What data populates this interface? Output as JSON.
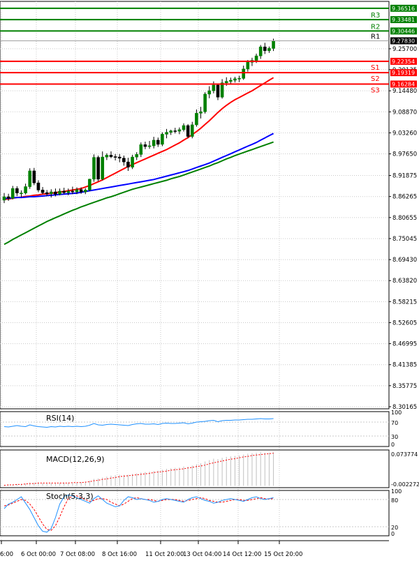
{
  "chart_data": {
    "type": "candlestick",
    "main": {
      "price_ticks": [
        "9.25700",
        "9.20135",
        "9.14480",
        "9.08870",
        "9.03260",
        "8.97650",
        "8.91875",
        "8.86265",
        "8.80655",
        "8.75045",
        "8.69430",
        "8.63820",
        "8.58215",
        "8.52605",
        "8.46995",
        "8.41385",
        "8.35775",
        "8.30165"
      ],
      "levels": [
        {
          "label": "",
          "value": 9.36516,
          "tag": "9.36516",
          "color": "#008000"
        },
        {
          "label": "R3",
          "value": 9.33481,
          "tag": "9.33481",
          "color": "#008000"
        },
        {
          "label": "R2",
          "value": 9.30446,
          "tag": "9.30446",
          "color": "#008000"
        },
        {
          "label": "R1",
          "value": 9.2783,
          "tag": "9.27830",
          "color": "#000000",
          "current": true
        },
        {
          "label": "S1",
          "value": 9.22354,
          "tag": "9.22354",
          "color": "#ff0000"
        },
        {
          "label": "S2",
          "value": 9.19319,
          "tag": "9.19319",
          "color": "#ff0000"
        },
        {
          "label": "S3",
          "value": 9.16284,
          "tag": "9.16284",
          "color": "#ff0000"
        }
      ],
      "time_labels": [
        "6:00",
        "6 Oct 00:00",
        "7 Oct 08:00",
        "8 Oct 16:00",
        "11 Oct 20:00",
        "13 Oct 04:00",
        "14 Oct 12:00",
        "15 Oct 20:00"
      ],
      "candles": [
        [
          8.853,
          8.872,
          8.845,
          8.862
        ],
        [
          8.862,
          8.87,
          8.851,
          8.858
        ],
        [
          8.858,
          8.891,
          8.855,
          8.884
        ],
        [
          8.884,
          8.89,
          8.864,
          8.872
        ],
        [
          8.872,
          8.879,
          8.861,
          8.872
        ],
        [
          8.872,
          8.897,
          8.868,
          8.889
        ],
        [
          8.889,
          8.938,
          8.883,
          8.931
        ],
        [
          8.931,
          8.939,
          8.893,
          8.899
        ],
        [
          8.899,
          8.906,
          8.874,
          8.88
        ],
        [
          8.88,
          8.888,
          8.868,
          8.873
        ],
        [
          8.873,
          8.88,
          8.864,
          8.87
        ],
        [
          8.87,
          8.882,
          8.86,
          8.875
        ],
        [
          8.875,
          8.884,
          8.863,
          8.869
        ],
        [
          8.869,
          8.884,
          8.866,
          8.877
        ],
        [
          8.877,
          8.886,
          8.869,
          8.873
        ],
        [
          8.873,
          8.884,
          8.866,
          8.877
        ],
        [
          8.877,
          8.889,
          8.869,
          8.875
        ],
        [
          8.875,
          8.887,
          8.869,
          8.881
        ],
        [
          8.881,
          8.887,
          8.87,
          8.875
        ],
        [
          8.875,
          8.885,
          8.869,
          8.88
        ],
        [
          8.88,
          8.91,
          8.877,
          8.909
        ],
        [
          8.909,
          8.975,
          8.902,
          8.967
        ],
        [
          8.967,
          8.972,
          8.903,
          8.909
        ],
        [
          8.909,
          8.983,
          8.906,
          8.968
        ],
        [
          8.968,
          8.978,
          8.96,
          8.973
        ],
        [
          8.973,
          8.983,
          8.965,
          8.969
        ],
        [
          8.969,
          8.976,
          8.959,
          8.968
        ],
        [
          8.968,
          8.976,
          8.954,
          8.965
        ],
        [
          8.965,
          8.972,
          8.945,
          8.955
        ],
        [
          8.955,
          8.966,
          8.931,
          8.941
        ],
        [
          8.941,
          8.974,
          8.936,
          8.968
        ],
        [
          8.968,
          8.981,
          8.96,
          8.975
        ],
        [
          8.975,
          9.007,
          8.968,
          9.001
        ],
        [
          9.001,
          9.009,
          8.989,
          8.996
        ],
        [
          8.996,
          9.011,
          8.99,
          8.998
        ],
        [
          8.998,
          9.022,
          8.991,
          9.013
        ],
        [
          9.013,
          9.02,
          8.995,
          9.002
        ],
        [
          9.002,
          9.034,
          8.997,
          9.029
        ],
        [
          9.029,
          9.043,
          9.018,
          9.034
        ],
        [
          9.034,
          9.041,
          9.027,
          9.038
        ],
        [
          9.038,
          9.046,
          9.031,
          9.037
        ],
        [
          9.037,
          9.047,
          9.029,
          9.041
        ],
        [
          9.041,
          9.058,
          9.036,
          9.052
        ],
        [
          9.052,
          9.056,
          9.018,
          9.023
        ],
        [
          9.023,
          9.062,
          9.018,
          9.054
        ],
        [
          9.054,
          9.095,
          9.049,
          9.085
        ],
        [
          9.085,
          9.102,
          9.071,
          9.089
        ],
        [
          9.089,
          9.141,
          9.084,
          9.136
        ],
        [
          9.136,
          9.157,
          9.125,
          9.145
        ],
        [
          9.145,
          9.17,
          9.138,
          9.16
        ],
        [
          9.16,
          9.164,
          9.12,
          9.128
        ],
        [
          9.128,
          9.176,
          9.124,
          9.166
        ],
        [
          9.166,
          9.181,
          9.158,
          9.17
        ],
        [
          9.17,
          9.18,
          9.162,
          9.173
        ],
        [
          9.173,
          9.182,
          9.167,
          9.177
        ],
        [
          9.177,
          9.185,
          9.168,
          9.178
        ],
        [
          9.178,
          9.212,
          9.174,
          9.203
        ],
        [
          9.203,
          9.227,
          9.196,
          9.221
        ],
        [
          9.221,
          9.233,
          9.211,
          9.226
        ],
        [
          9.226,
          9.244,
          9.219,
          9.238
        ],
        [
          9.238,
          9.267,
          9.23,
          9.262
        ],
        [
          9.262,
          9.273,
          9.243,
          9.252
        ],
        [
          9.252,
          9.263,
          9.246,
          9.258
        ],
        [
          9.258,
          9.284,
          9.251,
          9.278
        ]
      ],
      "moving_averages": [
        {
          "color": "#ff0000",
          "values": [
            8.855,
            8.856,
            8.858,
            8.86,
            8.861,
            8.863,
            8.864,
            8.866,
            8.867,
            8.869,
            8.87,
            8.871,
            8.873,
            8.875,
            8.876,
            8.878,
            8.88,
            8.882,
            8.884,
            8.888,
            8.892,
            8.897,
            8.902,
            8.907,
            8.913,
            8.919,
            8.925,
            8.931,
            8.937,
            8.943,
            8.948,
            8.953,
            8.958,
            8.963,
            8.968,
            8.973,
            8.978,
            8.983,
            8.988,
            8.994,
            9.0,
            9.006,
            9.013,
            9.02,
            9.028,
            9.036,
            9.045,
            9.055,
            9.065,
            9.076,
            9.087,
            9.097,
            9.106,
            9.114,
            9.121,
            9.127,
            9.133,
            9.139,
            9.145,
            9.152,
            9.159,
            9.166,
            9.173,
            9.18
          ]
        },
        {
          "color": "#0000ff",
          "values": [
            8.858,
            8.858,
            8.859,
            8.86,
            8.86,
            8.861,
            8.862,
            8.862,
            8.863,
            8.864,
            8.865,
            8.866,
            8.867,
            8.868,
            8.869,
            8.87,
            8.871,
            8.872,
            8.874,
            8.876,
            8.878,
            8.88,
            8.882,
            8.884,
            8.886,
            8.888,
            8.89,
            8.892,
            8.894,
            8.896,
            8.898,
            8.9,
            8.902,
            8.904,
            8.906,
            8.908,
            8.911,
            8.914,
            8.917,
            8.92,
            8.923,
            8.926,
            8.929,
            8.932,
            8.936,
            8.94,
            8.944,
            8.948,
            8.952,
            8.957,
            8.962,
            8.967,
            8.972,
            8.977,
            8.982,
            8.987,
            8.992,
            8.997,
            9.002,
            9.007,
            9.013,
            9.019,
            9.025,
            9.031
          ]
        },
        {
          "color": "#008000",
          "values": [
            8.735,
            8.741,
            8.748,
            8.754,
            8.76,
            8.766,
            8.772,
            8.778,
            8.784,
            8.79,
            8.796,
            8.801,
            8.806,
            8.811,
            8.816,
            8.821,
            8.826,
            8.83,
            8.835,
            8.839,
            8.843,
            8.847,
            8.851,
            8.855,
            8.859,
            8.862,
            8.866,
            8.87,
            8.874,
            8.878,
            8.882,
            8.885,
            8.888,
            8.891,
            8.894,
            8.897,
            8.9,
            8.903,
            8.906,
            8.91,
            8.913,
            8.916,
            8.92,
            8.924,
            8.928,
            8.932,
            8.936,
            8.94,
            8.944,
            8.949,
            8.953,
            8.958,
            8.963,
            8.967,
            8.972,
            8.976,
            8.98,
            8.984,
            8.988,
            8.992,
            8.996,
            9.0,
            9.004,
            9.008
          ]
        }
      ]
    },
    "rsi": {
      "label": "RSI(14)",
      "ticks": [
        "100",
        "70",
        "30",
        "0"
      ],
      "color": "#1e90ff",
      "values": [
        57,
        56,
        58,
        60,
        58,
        57,
        62,
        59,
        57,
        56,
        55,
        57,
        56,
        58,
        57,
        58,
        57,
        58,
        57,
        58,
        61,
        66,
        62,
        61,
        63,
        64,
        63,
        62,
        61,
        60,
        63,
        65,
        66,
        64,
        64,
        65,
        63,
        66,
        67,
        66,
        66,
        67,
        68,
        65,
        67,
        70,
        71,
        72,
        74,
        75,
        71,
        74,
        75,
        75,
        76,
        76,
        77,
        78,
        78,
        79,
        80,
        79,
        79,
        80
      ]
    },
    "macd": {
      "label": "MACD(12,26,9)",
      "ticks": [
        "0.073774",
        "-0.002272"
      ],
      "histogram": [
        0.002,
        0.003,
        0.003,
        0.004,
        0.004,
        0.005,
        0.007,
        0.007,
        0.007,
        0.006,
        0.006,
        0.006,
        0.006,
        0.006,
        0.007,
        0.007,
        0.007,
        0.007,
        0.008,
        0.009,
        0.011,
        0.015,
        0.016,
        0.018,
        0.02,
        0.022,
        0.023,
        0.024,
        0.024,
        0.024,
        0.026,
        0.027,
        0.029,
        0.03,
        0.031,
        0.032,
        0.033,
        0.035,
        0.037,
        0.038,
        0.039,
        0.04,
        0.042,
        0.042,
        0.044,
        0.047,
        0.049,
        0.053,
        0.056,
        0.059,
        0.058,
        0.061,
        0.063,
        0.064,
        0.065,
        0.066,
        0.068,
        0.07,
        0.071,
        0.072,
        0.073,
        0.072,
        0.072,
        0.073
      ],
      "signal": [
        0.001,
        0.002,
        0.002,
        0.003,
        0.003,
        0.004,
        0.005,
        0.005,
        0.006,
        0.006,
        0.006,
        0.006,
        0.006,
        0.006,
        0.006,
        0.006,
        0.007,
        0.007,
        0.007,
        0.008,
        0.009,
        0.011,
        0.012,
        0.014,
        0.015,
        0.017,
        0.018,
        0.02,
        0.021,
        0.022,
        0.023,
        0.024,
        0.025,
        0.026,
        0.027,
        0.029,
        0.03,
        0.031,
        0.032,
        0.034,
        0.035,
        0.036,
        0.037,
        0.039,
        0.04,
        0.042,
        0.043,
        0.045,
        0.048,
        0.05,
        0.052,
        0.054,
        0.056,
        0.058,
        0.059,
        0.061,
        0.063,
        0.064,
        0.066,
        0.067,
        0.068,
        0.069,
        0.07,
        0.071
      ],
      "hist_color": "#c0c0c0",
      "signal_color": "#ff0000"
    },
    "stoch": {
      "label": "Stoch(5,3,3)",
      "ticks": [
        "100",
        "80",
        "20",
        "0"
      ],
      "main_color": "#1e90ff",
      "signal_color": "#ff0000",
      "main": [
        60,
        70,
        74,
        80,
        86,
        72,
        58,
        40,
        22,
        10,
        8,
        16,
        40,
        70,
        86,
        90,
        88,
        84,
        80,
        76,
        72,
        82,
        88,
        80,
        72,
        68,
        64,
        66,
        78,
        86,
        84,
        80,
        82,
        80,
        78,
        74,
        76,
        80,
        82,
        80,
        78,
        76,
        74,
        80,
        84,
        86,
        82,
        78,
        76,
        72,
        74,
        78,
        80,
        82,
        80,
        78,
        76,
        80,
        84,
        86,
        82,
        80,
        82,
        84
      ],
      "signal": [
        66,
        68,
        72,
        76,
        80,
        78,
        70,
        58,
        42,
        26,
        14,
        12,
        22,
        42,
        64,
        82,
        88,
        88,
        84,
        80,
        76,
        78,
        82,
        82,
        80,
        74,
        70,
        66,
        70,
        76,
        82,
        84,
        82,
        80,
        80,
        78,
        76,
        78,
        80,
        80,
        80,
        78,
        76,
        78,
        80,
        82,
        84,
        82,
        78,
        76,
        74,
        74,
        76,
        78,
        80,
        80,
        78,
        78,
        80,
        82,
        84,
        82,
        81,
        82
      ]
    }
  }
}
